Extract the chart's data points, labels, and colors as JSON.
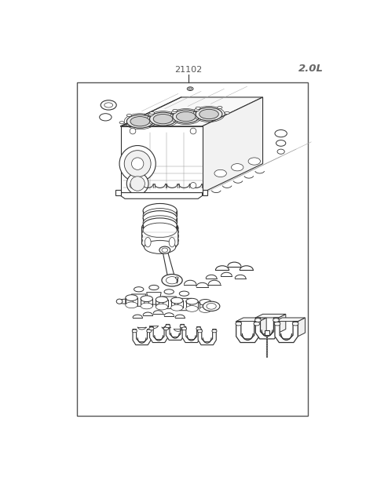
{
  "title": "21102",
  "label_top_right": "2.0L",
  "background_color": "#ffffff",
  "line_color": "#333333",
  "title_color": "#555555",
  "fig_width": 4.8,
  "fig_height": 6.22,
  "dpi": 100,
  "border": [
    48,
    30,
    382,
    552
  ]
}
